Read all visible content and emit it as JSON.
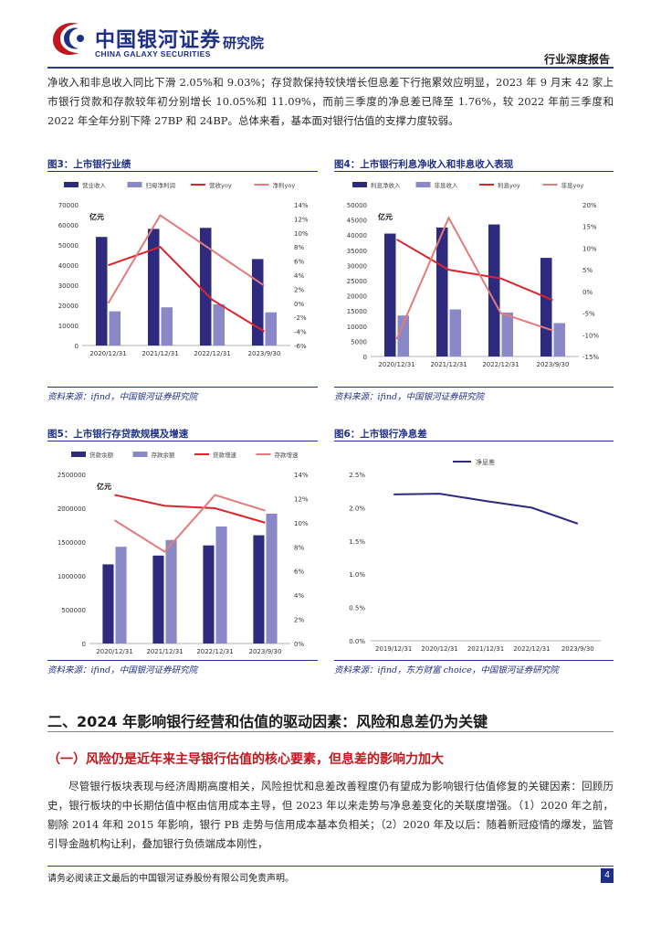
{
  "header": {
    "brand_cn": "中国银河证券",
    "brand_en": "CHINA GALAXY SECURITIES",
    "institute": "研究院",
    "report_type": "行业深度报告"
  },
  "intro_paragraph": "净收入和非息收入同比下滑 2.05%和 9.03%；存贷款保持较快增长但息差下行拖累效应明显，2023 年 9 月末 42 家上市银行贷款和存款较年初分别增长 10.05%和 11.09%，而前三季度的净息差已降至 1.76%，较 2022 年前三季度和 2022 年全年分别下降 27BP 和 24BP。总体来看，基本面对银行估值的支撑力度较弱。",
  "figures": {
    "fig3": {
      "title": "图3：上市银行业绩",
      "source": "资料来源：ifind，中国银河证券研究院"
    },
    "fig4": {
      "title": "图4：上市银行利息净收入和非息收入表现",
      "source": "资料来源：ifind，中国银河证券研究院"
    },
    "fig5": {
      "title": "图5：上市银行存贷款规模及增速",
      "source": "资料来源：ifind，中国银河证券研究院"
    },
    "fig6": {
      "title": "图6：上市银行净息差",
      "source": "资料来源：ifind，东方财富 choice，中国银河证券研究院"
    }
  },
  "section_title": "二、2024 年影响银行经营和估值的驱动因素：风险和息差仍为关键",
  "subsection_title": "（一）风险仍是近年来主导银行估值的核心要素，但息差的影响力加大",
  "body_paragraph": "尽管银行板块表现与经济周期高度相关，风险担忧和息差改善程度仍有望成为影响银行估值修复的关键因素：回顾历史，银行板块的中长期估值中枢由信用成本主导，但 2023 年以来走势与净息差变化的关联度增强。（1）2020 年之前，剔除 2014 年和 2015 年影响，银行 PB 走势与信用成本基本负相关；（2）2020 年及以后：随着新冠疫情的爆发，监管引导金融机构让利，叠加银行负债端成本刚性，",
  "footer": {
    "disclaimer": "请务必阅读正文最后的中国银河证券股份有限公司免责声明。",
    "page": "4"
  },
  "colors": {
    "brand_navy": "#1e2f86",
    "bar_dark": "#2e2b7e",
    "bar_light": "#8a88c6",
    "line_red": "#d9262e",
    "line_pink": "#e47a7a",
    "heading_red": "#c0171e"
  },
  "chart_data": [
    {
      "id": "fig3",
      "type": "bar",
      "unit_label": "亿元",
      "categories": [
        "2020/12/31",
        "2021/12/31",
        "2022/12/31",
        "2023/9/30"
      ],
      "bar_series": [
        {
          "name": "营业收入",
          "values": [
            54000,
            58000,
            58500,
            43000
          ]
        },
        {
          "name": "归母净利润",
          "values": [
            17000,
            19000,
            20500,
            16500
          ]
        }
      ],
      "line_series": [
        {
          "name": "营收yoy",
          "values": [
            5.4,
            8.0,
            0.5,
            -4.0
          ]
        },
        {
          "name": "净利yoy",
          "values": [
            0.0,
            12.5,
            7.5,
            2.5
          ]
        }
      ],
      "ylim_left": [
        0,
        70000
      ],
      "yticks_left": [
        "0",
        "10000",
        "20000",
        "30000",
        "40000",
        "50000",
        "60000",
        "70000"
      ],
      "ylim_right": [
        -6,
        14
      ],
      "yticks_right": [
        "-6%",
        "-4%",
        "-2%",
        "0%",
        "2%",
        "4%",
        "6%",
        "8%",
        "10%",
        "12%",
        "14%"
      ],
      "legend_position": "top"
    },
    {
      "id": "fig4",
      "type": "bar",
      "unit_label": "亿元",
      "categories": [
        "2020/12/31",
        "2021/12/31",
        "2022/12/31",
        "2023/9/30"
      ],
      "bar_series": [
        {
          "name": "利息净收入",
          "values": [
            40500,
            42500,
            43500,
            32500
          ]
        },
        {
          "name": "非息收入",
          "values": [
            13500,
            15500,
            14500,
            11000
          ]
        }
      ],
      "line_series": [
        {
          "name": "利息yoy",
          "values": [
            12.0,
            5.0,
            3.0,
            -2.0
          ]
        },
        {
          "name": "非息yoy",
          "values": [
            -11.0,
            17.0,
            -5.0,
            -9.0
          ]
        }
      ],
      "ylim_left": [
        0,
        50000
      ],
      "yticks_left": [
        "0",
        "5000",
        "10000",
        "15000",
        "20000",
        "25000",
        "30000",
        "35000",
        "40000",
        "45000",
        "50000"
      ],
      "ylim_right": [
        -15,
        20
      ],
      "yticks_right": [
        "-15%",
        "-10%",
        "-5%",
        "0%",
        "5%",
        "10%",
        "15%",
        "20%"
      ],
      "legend_position": "top"
    },
    {
      "id": "fig5",
      "type": "bar",
      "unit_label": "亿元",
      "categories": [
        "2020/12/31",
        "2021/12/31",
        "2022/12/31",
        "2023/9/30"
      ],
      "bar_series": [
        {
          "name": "贷款余额",
          "values": [
            1170000,
            1300000,
            1450000,
            1600000
          ]
        },
        {
          "name": "存款余额",
          "values": [
            1430000,
            1530000,
            1730000,
            1920000
          ]
        }
      ],
      "line_series": [
        {
          "name": "贷款增速",
          "values": [
            12.3,
            11.4,
            11.2,
            10.0
          ]
        },
        {
          "name": "存款增速",
          "values": [
            10.2,
            7.6,
            12.3,
            11.0
          ]
        }
      ],
      "ylim_left": [
        0,
        2500000
      ],
      "yticks_left": [
        "0",
        "500000",
        "1000000",
        "1500000",
        "2000000",
        "2500000"
      ],
      "ylim_right": [
        0,
        14
      ],
      "yticks_right": [
        "0%",
        "2%",
        "4%",
        "6%",
        "8%",
        "10%",
        "12%",
        "14%"
      ],
      "legend_position": "top"
    },
    {
      "id": "fig6",
      "type": "line",
      "categories": [
        "2019/12/31",
        "2020/12/31",
        "2021/12/31",
        "2022/12/31",
        "2023/9/30"
      ],
      "series": [
        {
          "name": "净息差",
          "values": [
            2.2,
            2.21,
            2.1,
            2.0,
            1.76
          ]
        }
      ],
      "ylim": [
        0,
        2.5
      ],
      "yticks": [
        "0.0%",
        "0.5%",
        "1.0%",
        "1.5%",
        "2.0%",
        "2.5%"
      ],
      "legend_position": "top"
    }
  ]
}
